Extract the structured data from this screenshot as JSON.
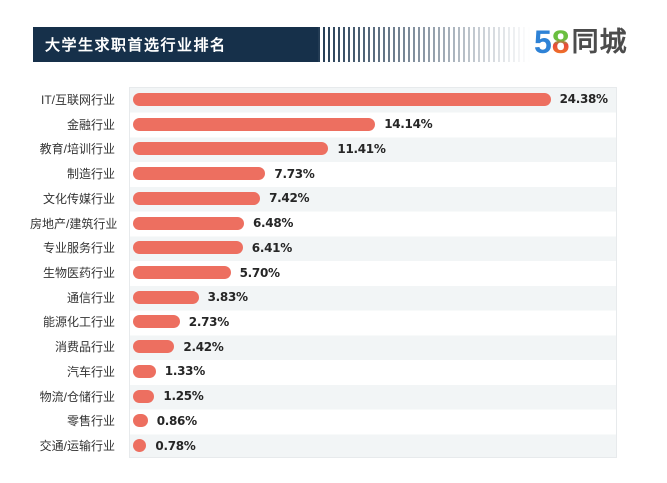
{
  "header": {
    "title": "大学生求职首选行业排名",
    "logo": {
      "part_5": "5",
      "part_8": "8",
      "part_tongcheng": "同城"
    }
  },
  "chart_data": {
    "type": "bar",
    "orientation": "horizontal",
    "title": "大学生求职首选行业排名",
    "categories": [
      "IT/互联网行业",
      "金融行业",
      "教育/培训行业",
      "制造行业",
      "文化传媒行业",
      "房地产/建筑行业",
      "专业服务行业",
      "生物医药行业",
      "通信行业",
      "能源化工行业",
      "消费品行业",
      "汽车行业",
      "物流/仓储行业",
      "零售行业",
      "交通/运输行业"
    ],
    "values": [
      24.38,
      14.14,
      11.41,
      7.73,
      7.42,
      6.48,
      6.41,
      5.7,
      3.83,
      2.73,
      2.42,
      1.33,
      1.25,
      0.86,
      0.78
    ],
    "value_labels": [
      "24.38%",
      "14.14%",
      "11.41%",
      "7.73%",
      "7.42%",
      "6.48%",
      "6.41%",
      "5.70%",
      "3.83%",
      "2.73%",
      "2.42%",
      "1.33%",
      "1.25%",
      "0.86%",
      "0.78%"
    ],
    "unit": "%",
    "xlim": [
      0,
      28.2
    ],
    "grid": false,
    "legend": false,
    "bar_color": "#ed6f60",
    "row_stripe_color": "#f2f5f6"
  },
  "colors": {
    "banner_bg": "#16304a",
    "banner_title": "#ffffff",
    "category_label": "#333333",
    "value_label": "#262626",
    "logo_blue": "#2e82d6",
    "logo_green": "#6abf3f",
    "logo_orange": "#f28a1e",
    "logo_text_dark": "#4c4c4c"
  }
}
